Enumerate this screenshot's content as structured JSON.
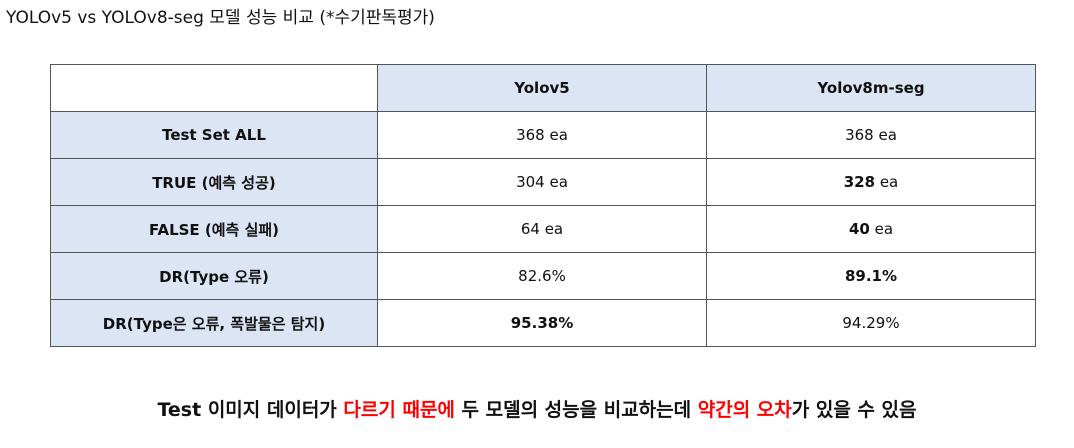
{
  "title": "YOLOv5 vs YOLOv8-seg 모델 성능 비교 (*수기판독평가)",
  "table": {
    "headers": [
      "",
      "Yolov5",
      "Yolov8m-seg"
    ],
    "rows": [
      {
        "label": "Test Set ALL",
        "yolov5": {
          "num": "368",
          "unit": " ea",
          "bold": false
        },
        "yolov8": {
          "num": "368",
          "unit": " ea",
          "bold": false
        }
      },
      {
        "label": "TRUE (예측 성공)",
        "yolov5": {
          "num": "304",
          "unit": " ea",
          "bold": false
        },
        "yolov8": {
          "num": "328",
          "unit": " ea",
          "bold": true
        }
      },
      {
        "label": "FALSE (예측 실패)",
        "yolov5": {
          "num": "64",
          "unit": " ea",
          "bold": false
        },
        "yolov8": {
          "num": "40",
          "unit": " ea",
          "bold": true
        }
      },
      {
        "label": "DR(Type 오류)",
        "yolov5": {
          "num": "82.6%",
          "unit": "",
          "bold": false
        },
        "yolov8": {
          "num": "89.1%",
          "unit": "",
          "bold": true
        }
      },
      {
        "label": "DR(Type은 오류, 폭발물은 탐지)",
        "yolov5": {
          "num": "95.38%",
          "unit": "",
          "bold": true
        },
        "yolov8": {
          "num": "94.29%",
          "unit": "",
          "bold": false
        }
      }
    ]
  },
  "note": {
    "part1": "Test 이미지 데이터가 ",
    "part2_red": "다르기 때문에",
    "part3": " 두 모델의 성능을 비교하는데 ",
    "part4_red": "약간의 오차",
    "part5": "가 있을 수 있음"
  },
  "colors": {
    "header_bg": "#dce5f4",
    "border": "#555555",
    "highlight_red": "#ff0000"
  }
}
